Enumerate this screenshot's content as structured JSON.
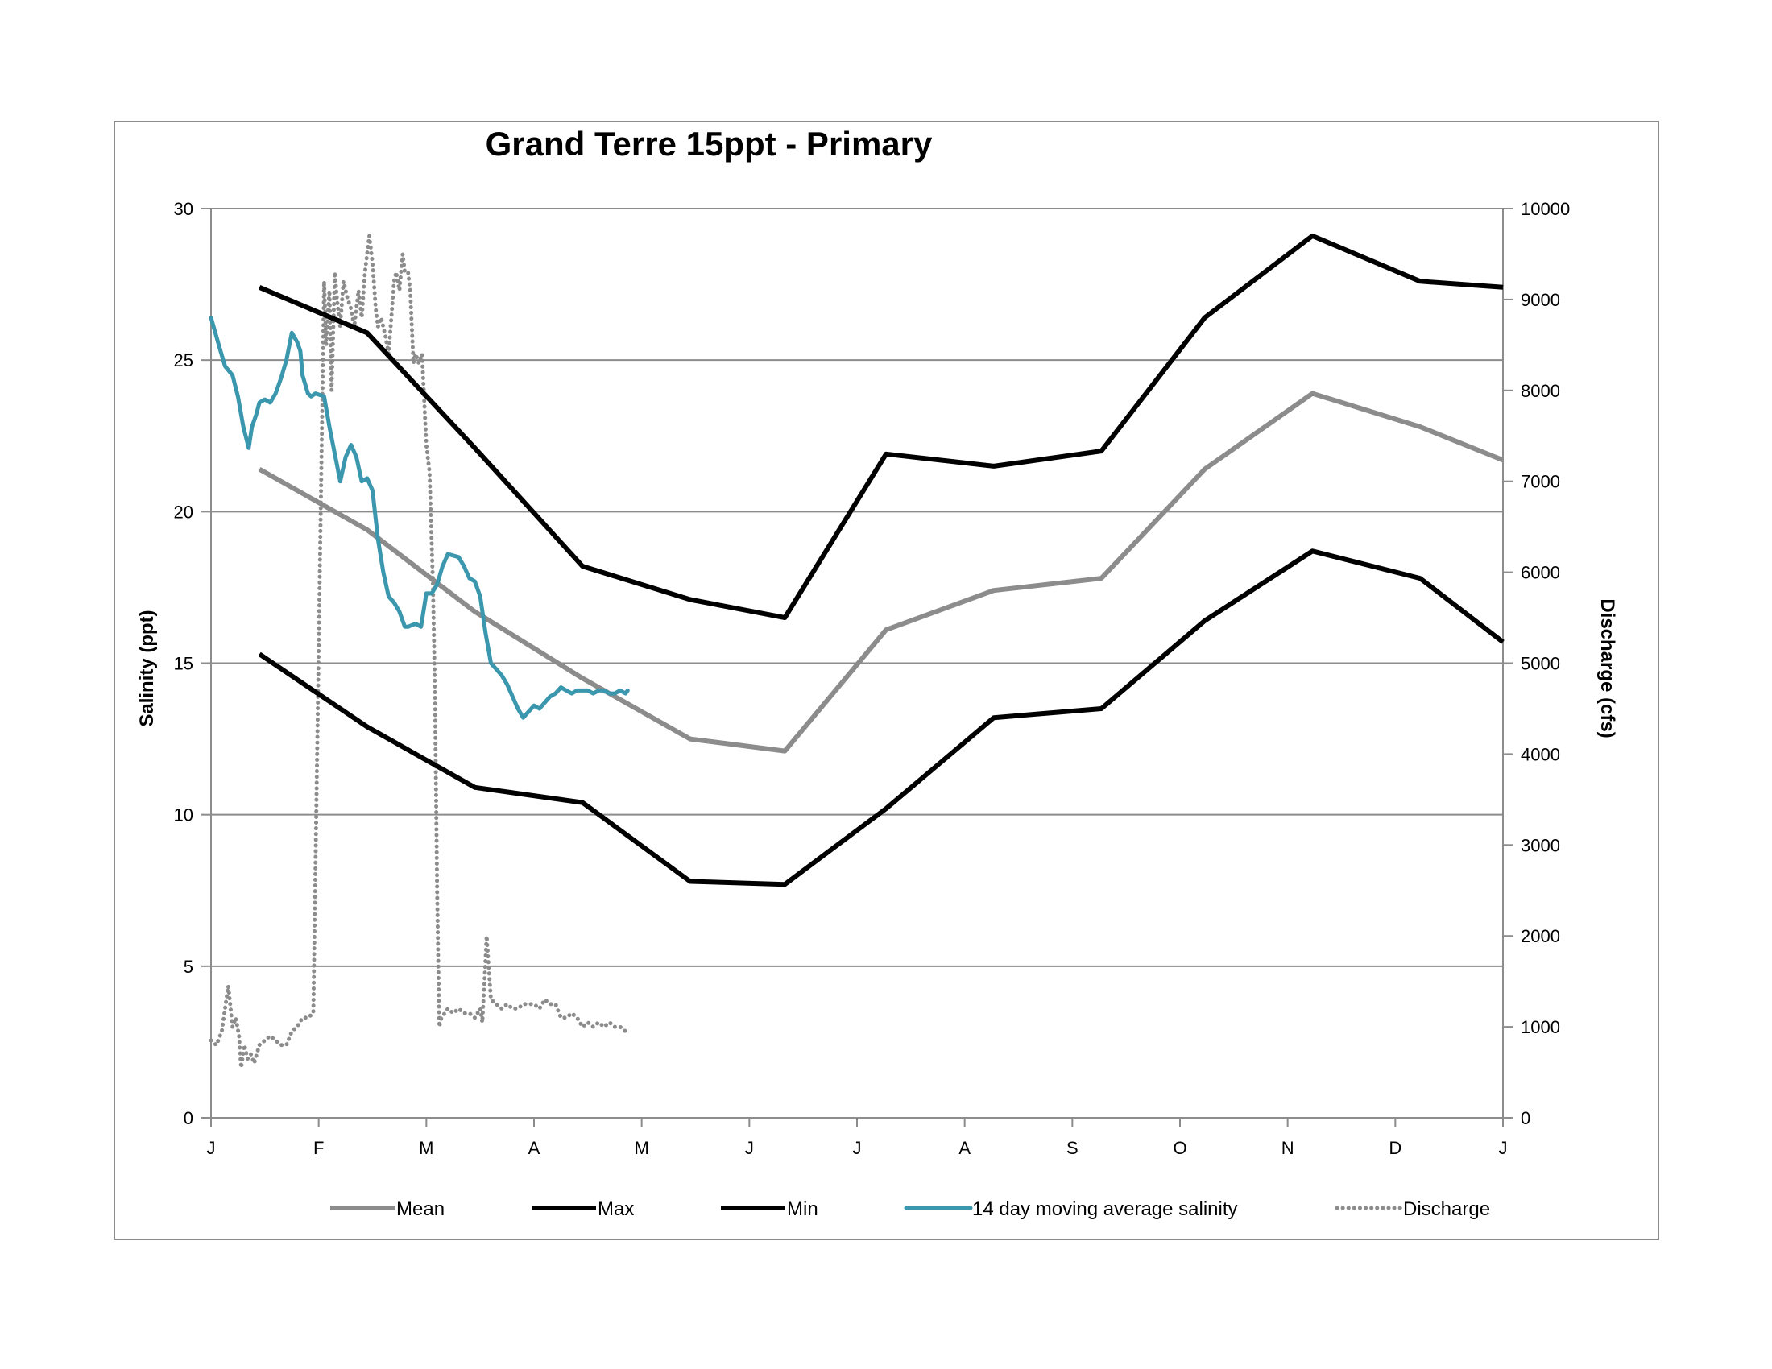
{
  "chart_data": {
    "type": "line",
    "title": "Grand Terre 15ppt  - Primary",
    "ylabel": "Salinity (ppt)",
    "y2label": "Discharge (cfs)",
    "x_ticks": [
      "J",
      "F",
      "M",
      "A",
      "M",
      "J",
      "J",
      "A",
      "S",
      "O",
      "N",
      "D",
      "J"
    ],
    "ylim": [
      0,
      30
    ],
    "y_ticks": [
      0,
      5,
      10,
      15,
      20,
      25,
      30
    ],
    "y2lim": [
      0,
      10000
    ],
    "y2_ticks": [
      0,
      1000,
      2000,
      3000,
      4000,
      5000,
      6000,
      7000,
      8000,
      9000,
      10000
    ],
    "grid": "horizontal",
    "legend_position": "bottom",
    "colors": {
      "mean": "#8c8c8c",
      "max": "#000000",
      "min": "#000000",
      "moving_avg": "#3a97ad",
      "discharge": "#8c8c8c",
      "grid": "#8c8c8c"
    },
    "series": [
      {
        "name": "Mean",
        "axis": "left",
        "style": "solid",
        "x": [
          0.45,
          1.45,
          2.45,
          3.45,
          4.45,
          5.33,
          6.27,
          7.27,
          8.27,
          9.23,
          10.23,
          11.23,
          12.0
        ],
        "y": [
          21.4,
          19.4,
          16.7,
          14.5,
          12.5,
          12.1,
          16.1,
          17.4,
          17.8,
          21.4,
          23.9,
          22.8,
          21.7
        ]
      },
      {
        "name": "Max",
        "axis": "left",
        "style": "solid",
        "x": [
          0.45,
          1.45,
          2.45,
          3.45,
          4.45,
          5.33,
          6.27,
          7.27,
          8.27,
          9.23,
          10.23,
          11.23,
          12.0
        ],
        "y": [
          27.4,
          25.9,
          22.1,
          18.2,
          17.1,
          16.5,
          21.9,
          21.5,
          22.0,
          26.4,
          29.1,
          27.6,
          27.4
        ]
      },
      {
        "name": "Min",
        "axis": "left",
        "style": "solid",
        "x": [
          0.45,
          1.45,
          2.45,
          3.45,
          4.45,
          5.33,
          6.27,
          7.27,
          8.27,
          9.23,
          10.23,
          11.23,
          12.0
        ],
        "y": [
          15.3,
          12.9,
          10.9,
          10.4,
          7.8,
          7.7,
          10.2,
          13.2,
          13.5,
          16.4,
          18.7,
          17.8,
          15.7
        ]
      },
      {
        "name": "14 day moving average salinity",
        "axis": "left",
        "style": "solid",
        "x": [
          0.0,
          0.08,
          0.13,
          0.2,
          0.25,
          0.3,
          0.35,
          0.38,
          0.42,
          0.45,
          0.5,
          0.55,
          0.6,
          0.65,
          0.7,
          0.75,
          0.8,
          0.83,
          0.85,
          0.9,
          0.93,
          0.97,
          1.05,
          1.1,
          1.2,
          1.25,
          1.3,
          1.35,
          1.4,
          1.45,
          1.5,
          1.55,
          1.6,
          1.65,
          1.7,
          1.75,
          1.8,
          1.83,
          1.9,
          1.95,
          2.0,
          2.05,
          2.1,
          2.15,
          2.2,
          2.3,
          2.35,
          2.4,
          2.45,
          2.5,
          2.55,
          2.6,
          2.65,
          2.7,
          2.75,
          2.8,
          2.85,
          2.9,
          2.95,
          3.0,
          3.05,
          3.1,
          3.15,
          3.2,
          3.25,
          3.3,
          3.35,
          3.4,
          3.45,
          3.5,
          3.55,
          3.6,
          3.65,
          3.7,
          3.75,
          3.8,
          3.85,
          3.87
        ],
        "y": [
          26.4,
          25.4,
          24.8,
          24.5,
          23.8,
          22.8,
          22.1,
          22.8,
          23.2,
          23.6,
          23.7,
          23.6,
          23.9,
          24.4,
          25.0,
          25.9,
          25.6,
          25.3,
          24.5,
          23.9,
          23.8,
          23.9,
          23.8,
          22.8,
          21.0,
          21.8,
          22.2,
          21.8,
          21.0,
          21.1,
          20.7,
          19.1,
          18.0,
          17.2,
          17.0,
          16.7,
          16.2,
          16.2,
          16.3,
          16.2,
          17.3,
          17.3,
          17.6,
          18.2,
          18.6,
          18.5,
          18.2,
          17.8,
          17.7,
          17.2,
          16.0,
          15.0,
          14.8,
          14.6,
          14.3,
          13.9,
          13.5,
          13.2,
          13.4,
          13.6,
          13.5,
          13.7,
          13.9,
          14.0,
          14.2,
          14.1,
          14.0,
          14.1,
          14.1,
          14.1,
          14.0,
          14.1,
          14.1,
          14.0,
          14.0,
          14.1,
          14.0,
          14.1
        ]
      },
      {
        "name": "Discharge",
        "axis": "right",
        "style": "dotted",
        "x": [
          0.0,
          0.05,
          0.1,
          0.13,
          0.16,
          0.2,
          0.23,
          0.26,
          0.28,
          0.31,
          0.34,
          0.37,
          0.4,
          0.45,
          0.5,
          0.55,
          0.6,
          0.65,
          0.7,
          0.75,
          0.8,
          0.85,
          0.9,
          0.95,
          1.05,
          1.07,
          1.1,
          1.12,
          1.15,
          1.17,
          1.2,
          1.23,
          1.27,
          1.3,
          1.33,
          1.37,
          1.4,
          1.43,
          1.45,
          1.47,
          1.5,
          1.53,
          1.55,
          1.58,
          1.62,
          1.65,
          1.7,
          1.72,
          1.75,
          1.78,
          1.8,
          1.83,
          1.85,
          1.88,
          1.9,
          1.93,
          1.96,
          2.0,
          2.03,
          2.06,
          2.08,
          2.1,
          2.12,
          2.14,
          2.17,
          2.2,
          2.25,
          2.3,
          2.35,
          2.4,
          2.45,
          2.5,
          2.52,
          2.54,
          2.56,
          2.6,
          2.65,
          2.7,
          2.75,
          2.8,
          2.85,
          2.9,
          2.95,
          3.0,
          3.05,
          3.1,
          3.15,
          3.2,
          3.25,
          3.3,
          3.35,
          3.4,
          3.45,
          3.5,
          3.55,
          3.6,
          3.65,
          3.7,
          3.75,
          3.8,
          3.85
        ],
        "y": [
          850,
          800,
          950,
          1200,
          1450,
          1000,
          1100,
          900,
          550,
          800,
          650,
          700,
          600,
          800,
          850,
          900,
          850,
          800,
          800,
          950,
          1000,
          1100,
          1100,
          1150,
          9200,
          8500,
          9100,
          8000,
          9300,
          9000,
          8700,
          9200,
          9000,
          8900,
          8700,
          9100,
          8800,
          9300,
          9500,
          9700,
          9400,
          8900,
          8700,
          8800,
          8600,
          8400,
          9200,
          9300,
          9100,
          9500,
          9300,
          9300,
          9100,
          8300,
          8400,
          8300,
          8400,
          7400,
          7100,
          5900,
          4700,
          2500,
          1000,
          1100,
          1150,
          1200,
          1150,
          1200,
          1150,
          1150,
          1100,
          1200,
          1050,
          1500,
          2000,
          1300,
          1250,
          1200,
          1250,
          1200,
          1200,
          1250,
          1250,
          1250,
          1200,
          1300,
          1250,
          1250,
          1100,
          1100,
          1150,
          1100,
          1000,
          1050,
          1000,
          1050,
          1000,
          1050,
          1000,
          1000,
          950
        ]
      }
    ]
  }
}
